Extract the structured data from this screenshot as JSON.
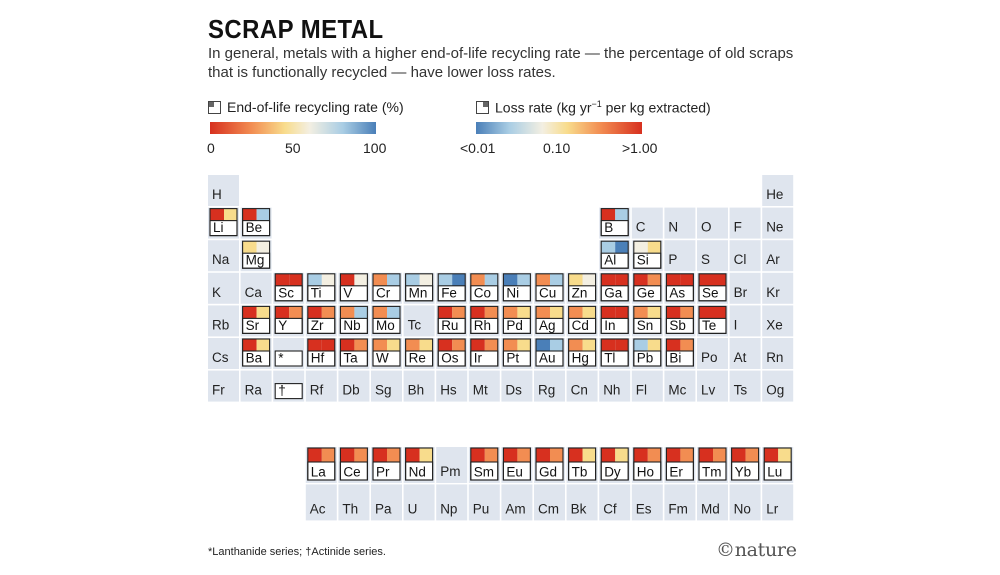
{
  "title": "SCRAP METAL",
  "subtitle": "In general, metals with a higher end-of-life recycling rate — the percentage of old scraps that is functionally recycled — have lower loss rates.",
  "legend": {
    "recycling_label": "End-of-life recycling rate (%)",
    "recycling_ticks": [
      "0",
      "50",
      "100"
    ],
    "loss_label_prefix": "Loss rate (kg yr",
    "loss_label_sup": "−1",
    "loss_label_suffix": " per kg extracted)",
    "loss_ticks": [
      "<0.01",
      "0.10",
      ">1.00"
    ]
  },
  "footnote": "*Lanthanide series; †Actinide series.",
  "credit": "©nature",
  "colors": {
    "cell_bg": "#dfe5ee",
    "red": "#d7301f",
    "orange": "#f28d52",
    "yellow": "#f8dc8c",
    "cream": "#f3efe2",
    "lightblue": "#a9cde4",
    "blue": "#4a7fb8"
  },
  "chart_data": {
    "type": "heatmap",
    "description_fields": [
      "symbol",
      "row",
      "col",
      "recycling_rate_pct",
      "loss_rate"
    ],
    "elements": [
      {
        "s": "H",
        "r": 1,
        "c": 1
      },
      {
        "s": "He",
        "r": 1,
        "c": 18
      },
      {
        "s": "Li",
        "r": 2,
        "c": 1,
        "m": [
          "red",
          "yellow"
        ]
      },
      {
        "s": "Be",
        "r": 2,
        "c": 2,
        "m": [
          "red",
          "lightblue"
        ]
      },
      {
        "s": "B",
        "r": 2,
        "c": 13,
        "m": [
          "red",
          "lightblue"
        ]
      },
      {
        "s": "C",
        "r": 2,
        "c": 14
      },
      {
        "s": "N",
        "r": 2,
        "c": 15
      },
      {
        "s": "O",
        "r": 2,
        "c": 16
      },
      {
        "s": "F",
        "r": 2,
        "c": 17
      },
      {
        "s": "Ne",
        "r": 2,
        "c": 18
      },
      {
        "s": "Na",
        "r": 3,
        "c": 1
      },
      {
        "s": "Mg",
        "r": 3,
        "c": 2,
        "m": [
          "yellow",
          "cream"
        ]
      },
      {
        "s": "Al",
        "r": 3,
        "c": 13,
        "m": [
          "lightblue",
          "blue"
        ]
      },
      {
        "s": "Si",
        "r": 3,
        "c": 14,
        "m": [
          "cream",
          "yellow"
        ]
      },
      {
        "s": "P",
        "r": 3,
        "c": 15
      },
      {
        "s": "S",
        "r": 3,
        "c": 16
      },
      {
        "s": "Cl",
        "r": 3,
        "c": 17
      },
      {
        "s": "Ar",
        "r": 3,
        "c": 18
      },
      {
        "s": "K",
        "r": 4,
        "c": 1
      },
      {
        "s": "Ca",
        "r": 4,
        "c": 2
      },
      {
        "s": "Sc",
        "r": 4,
        "c": 3,
        "m": [
          "red",
          "red"
        ]
      },
      {
        "s": "Ti",
        "r": 4,
        "c": 4,
        "m": [
          "lightblue",
          "cream"
        ]
      },
      {
        "s": "V",
        "r": 4,
        "c": 5,
        "m": [
          "red",
          "cream"
        ]
      },
      {
        "s": "Cr",
        "r": 4,
        "c": 6,
        "m": [
          "orange",
          "lightblue"
        ]
      },
      {
        "s": "Mn",
        "r": 4,
        "c": 7,
        "m": [
          "lightblue",
          "cream"
        ]
      },
      {
        "s": "Fe",
        "r": 4,
        "c": 8,
        "m": [
          "lightblue",
          "blue"
        ]
      },
      {
        "s": "Co",
        "r": 4,
        "c": 9,
        "m": [
          "orange",
          "lightblue"
        ]
      },
      {
        "s": "Ni",
        "r": 4,
        "c": 10,
        "m": [
          "blue",
          "lightblue"
        ]
      },
      {
        "s": "Cu",
        "r": 4,
        "c": 11,
        "m": [
          "orange",
          "lightblue"
        ]
      },
      {
        "s": "Zn",
        "r": 4,
        "c": 12,
        "m": [
          "yellow",
          "cream"
        ]
      },
      {
        "s": "Ga",
        "r": 4,
        "c": 13,
        "m": [
          "red",
          "red"
        ]
      },
      {
        "s": "Ge",
        "r": 4,
        "c": 14,
        "m": [
          "red",
          "orange"
        ]
      },
      {
        "s": "As",
        "r": 4,
        "c": 15,
        "m": [
          "red",
          "red"
        ]
      },
      {
        "s": "Se",
        "r": 4,
        "c": 16,
        "m": [
          "red",
          "red"
        ]
      },
      {
        "s": "Br",
        "r": 4,
        "c": 17
      },
      {
        "s": "Kr",
        "r": 4,
        "c": 18
      },
      {
        "s": "Rb",
        "r": 5,
        "c": 1
      },
      {
        "s": "Sr",
        "r": 5,
        "c": 2,
        "m": [
          "red",
          "yellow"
        ]
      },
      {
        "s": "Y",
        "r": 5,
        "c": 3,
        "m": [
          "red",
          "orange"
        ]
      },
      {
        "s": "Zr",
        "r": 5,
        "c": 4,
        "m": [
          "red",
          "orange"
        ]
      },
      {
        "s": "Nb",
        "r": 5,
        "c": 5,
        "m": [
          "orange",
          "lightblue"
        ]
      },
      {
        "s": "Mo",
        "r": 5,
        "c": 6,
        "m": [
          "orange",
          "lightblue"
        ]
      },
      {
        "s": "Tc",
        "r": 5,
        "c": 7
      },
      {
        "s": "Ru",
        "r": 5,
        "c": 8,
        "m": [
          "red",
          "orange"
        ]
      },
      {
        "s": "Rh",
        "r": 5,
        "c": 9,
        "m": [
          "red",
          "orange"
        ]
      },
      {
        "s": "Pd",
        "r": 5,
        "c": 10,
        "m": [
          "orange",
          "yellow"
        ]
      },
      {
        "s": "Ag",
        "r": 5,
        "c": 11,
        "m": [
          "orange",
          "yellow"
        ]
      },
      {
        "s": "Cd",
        "r": 5,
        "c": 12,
        "m": [
          "orange",
          "yellow"
        ]
      },
      {
        "s": "In",
        "r": 5,
        "c": 13,
        "m": [
          "red",
          "red"
        ]
      },
      {
        "s": "Sn",
        "r": 5,
        "c": 14,
        "m": [
          "orange",
          "yellow"
        ]
      },
      {
        "s": "Sb",
        "r": 5,
        "c": 15,
        "m": [
          "red",
          "orange"
        ]
      },
      {
        "s": "Te",
        "r": 5,
        "c": 16,
        "m": [
          "red",
          "red"
        ]
      },
      {
        "s": "I",
        "r": 5,
        "c": 17
      },
      {
        "s": "Xe",
        "r": 5,
        "c": 18
      },
      {
        "s": "Cs",
        "r": 6,
        "c": 1
      },
      {
        "s": "Ba",
        "r": 6,
        "c": 2,
        "m": [
          "red",
          "yellow"
        ]
      },
      {
        "s": "*",
        "r": 6,
        "c": 3,
        "plain": true
      },
      {
        "s": "Hf",
        "r": 6,
        "c": 4,
        "m": [
          "red",
          "red"
        ]
      },
      {
        "s": "Ta",
        "r": 6,
        "c": 5,
        "m": [
          "red",
          "orange"
        ]
      },
      {
        "s": "W",
        "r": 6,
        "c": 6,
        "m": [
          "orange",
          "yellow"
        ]
      },
      {
        "s": "Re",
        "r": 6,
        "c": 7,
        "m": [
          "orange",
          "yellow"
        ]
      },
      {
        "s": "Os",
        "r": 6,
        "c": 8,
        "m": [
          "red",
          "orange"
        ]
      },
      {
        "s": "Ir",
        "r": 6,
        "c": 9,
        "m": [
          "red",
          "orange"
        ]
      },
      {
        "s": "Pt",
        "r": 6,
        "c": 10,
        "m": [
          "orange",
          "yellow"
        ]
      },
      {
        "s": "Au",
        "r": 6,
        "c": 11,
        "m": [
          "blue",
          "lightblue"
        ]
      },
      {
        "s": "Hg",
        "r": 6,
        "c": 12,
        "m": [
          "orange",
          "yellow"
        ]
      },
      {
        "s": "Tl",
        "r": 6,
        "c": 13,
        "m": [
          "red",
          "red"
        ]
      },
      {
        "s": "Pb",
        "r": 6,
        "c": 14,
        "m": [
          "lightblue",
          "yellow"
        ]
      },
      {
        "s": "Bi",
        "r": 6,
        "c": 15,
        "m": [
          "red",
          "orange"
        ]
      },
      {
        "s": "Po",
        "r": 6,
        "c": 16
      },
      {
        "s": "At",
        "r": 6,
        "c": 17
      },
      {
        "s": "Rn",
        "r": 6,
        "c": 18
      },
      {
        "s": "Fr",
        "r": 7,
        "c": 1
      },
      {
        "s": "Ra",
        "r": 7,
        "c": 2
      },
      {
        "s": "†",
        "r": 7,
        "c": 3,
        "plain": true
      },
      {
        "s": "Rf",
        "r": 7,
        "c": 4
      },
      {
        "s": "Db",
        "r": 7,
        "c": 5
      },
      {
        "s": "Sg",
        "r": 7,
        "c": 6
      },
      {
        "s": "Bh",
        "r": 7,
        "c": 7
      },
      {
        "s": "Hs",
        "r": 7,
        "c": 8
      },
      {
        "s": "Mt",
        "r": 7,
        "c": 9
      },
      {
        "s": "Ds",
        "r": 7,
        "c": 10
      },
      {
        "s": "Rg",
        "r": 7,
        "c": 11
      },
      {
        "s": "Cn",
        "r": 7,
        "c": 12
      },
      {
        "s": "Nh",
        "r": 7,
        "c": 13
      },
      {
        "s": "Fl",
        "r": 7,
        "c": 14
      },
      {
        "s": "Mc",
        "r": 7,
        "c": 15
      },
      {
        "s": "Lv",
        "r": 7,
        "c": 16
      },
      {
        "s": "Ts",
        "r": 7,
        "c": 17
      },
      {
        "s": "Og",
        "r": 7,
        "c": 18
      },
      {
        "s": "La",
        "r": 9,
        "c": 4,
        "m": [
          "red",
          "orange"
        ]
      },
      {
        "s": "Ce",
        "r": 9,
        "c": 5,
        "m": [
          "red",
          "orange"
        ]
      },
      {
        "s": "Pr",
        "r": 9,
        "c": 6,
        "m": [
          "red",
          "orange"
        ]
      },
      {
        "s": "Nd",
        "r": 9,
        "c": 7,
        "m": [
          "red",
          "yellow"
        ]
      },
      {
        "s": "Pm",
        "r": 9,
        "c": 8
      },
      {
        "s": "Sm",
        "r": 9,
        "c": 9,
        "m": [
          "red",
          "orange"
        ]
      },
      {
        "s": "Eu",
        "r": 9,
        "c": 10,
        "m": [
          "red",
          "orange"
        ]
      },
      {
        "s": "Gd",
        "r": 9,
        "c": 11,
        "m": [
          "red",
          "orange"
        ]
      },
      {
        "s": "Tb",
        "r": 9,
        "c": 12,
        "m": [
          "red",
          "yellow"
        ]
      },
      {
        "s": "Dy",
        "r": 9,
        "c": 13,
        "m": [
          "red",
          "yellow"
        ]
      },
      {
        "s": "Ho",
        "r": 9,
        "c": 14,
        "m": [
          "red",
          "orange"
        ]
      },
      {
        "s": "Er",
        "r": 9,
        "c": 15,
        "m": [
          "red",
          "orange"
        ]
      },
      {
        "s": "Tm",
        "r": 9,
        "c": 16,
        "m": [
          "red",
          "orange"
        ]
      },
      {
        "s": "Yb",
        "r": 9,
        "c": 17,
        "m": [
          "red",
          "orange"
        ]
      },
      {
        "s": "Lu",
        "r": 9,
        "c": 18,
        "m": [
          "red",
          "yellow"
        ]
      },
      {
        "s": "Ac",
        "r": 10,
        "c": 4
      },
      {
        "s": "Th",
        "r": 10,
        "c": 5
      },
      {
        "s": "Pa",
        "r": 10,
        "c": 6
      },
      {
        "s": "U",
        "r": 10,
        "c": 7
      },
      {
        "s": "Np",
        "r": 10,
        "c": 8
      },
      {
        "s": "Pu",
        "r": 10,
        "c": 9
      },
      {
        "s": "Am",
        "r": 10,
        "c": 10
      },
      {
        "s": "Cm",
        "r": 10,
        "c": 11
      },
      {
        "s": "Bk",
        "r": 10,
        "c": 12
      },
      {
        "s": "Cf",
        "r": 10,
        "c": 13
      },
      {
        "s": "Es",
        "r": 10,
        "c": 14
      },
      {
        "s": "Fm",
        "r": 10,
        "c": 15
      },
      {
        "s": "Md",
        "r": 10,
        "c": 16
      },
      {
        "s": "No",
        "r": 10,
        "c": 17
      },
      {
        "s": "Lr",
        "r": 10,
        "c": 18
      }
    ]
  }
}
